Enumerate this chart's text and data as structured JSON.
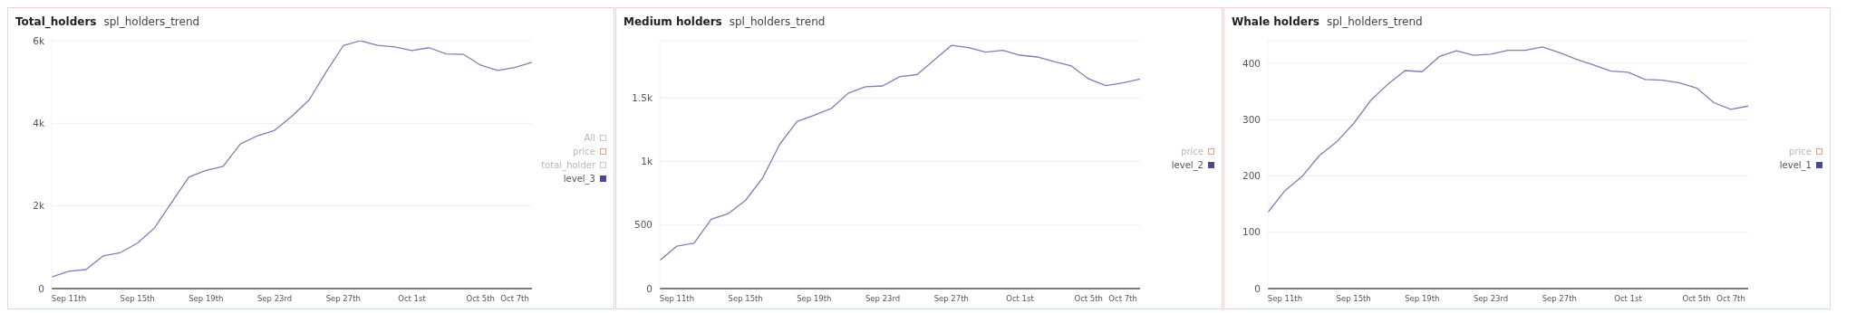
{
  "chart_data": [
    {
      "type": "line",
      "title": "Total_holders",
      "subtitle": "spl_holders_trend",
      "x": [
        "--09-10",
        "--09-11",
        "--09-12",
        "--09-13",
        "--09-14",
        "--09-15",
        "--09-16",
        "--09-17",
        "--09-18",
        "--09-19",
        "--09-20",
        "--09-21",
        "--09-22",
        "--09-23",
        "--09-24",
        "--09-25",
        "--09-26",
        "--09-27",
        "--09-28",
        "--09-29",
        "--09-30",
        "--10-01",
        "--10-02",
        "--10-03",
        "--10-04",
        "--10-05",
        "--10-06",
        "--10-07",
        "--10-08"
      ],
      "series": [
        {
          "name": "All",
          "color": "#c8c8c8",
          "values": [
            null,
            null,
            null,
            null,
            null,
            null,
            null,
            null,
            null,
            null,
            null,
            null,
            null,
            null,
            null,
            null,
            null,
            null,
            null,
            null,
            null,
            null,
            null,
            null,
            null,
            null,
            null,
            null,
            null
          ]
        },
        {
          "name": "price",
          "color": "#e8a08a",
          "values": [
            null,
            null,
            null,
            null,
            null,
            null,
            null,
            null,
            null,
            null,
            null,
            null,
            null,
            null,
            null,
            null,
            null,
            null,
            null,
            null,
            null,
            null,
            null,
            null,
            null,
            null,
            null,
            null,
            null
          ]
        },
        {
          "name": "total_holder",
          "color": "#c8c8c8",
          "values": [
            null,
            null,
            null,
            null,
            null,
            null,
            null,
            null,
            null,
            null,
            null,
            null,
            null,
            null,
            null,
            null,
            null,
            null,
            null,
            null,
            null,
            null,
            null,
            null,
            null,
            null,
            null,
            null,
            null
          ]
        },
        {
          "name": "level_3",
          "color": "#7f7fb8",
          "values": [
            280,
            420,
            460,
            790,
            870,
            1100,
            1470,
            2090,
            2700,
            2860,
            2960,
            3500,
            3700,
            3830,
            4170,
            4560,
            5240,
            5880,
            6000,
            5890,
            5850,
            5760,
            5830,
            5680,
            5670,
            5410,
            5280,
            5350,
            5480
          ]
        }
      ],
      "xlim": [
        "--09-10",
        "--10-08"
      ],
      "xticks": [
        {
          "value": "--09-11",
          "label": "Sep 11th"
        },
        {
          "value": "--09-15",
          "label": "Sep 15th"
        },
        {
          "value": "--09-19",
          "label": "Sep 19th"
        },
        {
          "value": "--09-23",
          "label": "Sep 23rd"
        },
        {
          "value": "--09-27",
          "label": "Sep 27th"
        },
        {
          "value": "--10-01",
          "label": "Oct 1st"
        },
        {
          "value": "--10-05",
          "label": "Oct 5th"
        },
        {
          "value": "--10-07",
          "label": "Oct 7th"
        }
      ],
      "ylim": [
        0,
        6000
      ],
      "yticks": [
        0,
        {
          "value": 2000,
          "label": "2k"
        },
        {
          "value": 4000,
          "label": "4k"
        },
        {
          "value": 6000,
          "label": "6k"
        }
      ],
      "grid": "y",
      "legend": "right",
      "marker": "none",
      "line_style": "solid"
    },
    {
      "type": "line",
      "title": "Medium holders",
      "subtitle": "spl_holders_trend",
      "x": [
        "--09-10",
        "--09-11",
        "--09-12",
        "--09-13",
        "--09-14",
        "--09-15",
        "--09-16",
        "--09-17",
        "--09-18",
        "--09-19",
        "--09-20",
        "--09-21",
        "--09-22",
        "--09-23",
        "--09-24",
        "--09-25",
        "--09-26",
        "--09-27",
        "--09-28",
        "--09-29",
        "--09-30",
        "--10-01",
        "--10-02",
        "--10-03",
        "--10-04",
        "--10-05",
        "--10-06",
        "--10-07",
        "--10-08"
      ],
      "series": [
        {
          "name": "price",
          "color": "#e8a08a",
          "values": [
            null,
            null,
            null,
            null,
            null,
            null,
            null,
            null,
            null,
            null,
            null,
            null,
            null,
            null,
            null,
            null,
            null,
            null,
            null,
            null,
            null,
            null,
            null,
            null,
            null,
            null,
            null,
            null,
            null
          ]
        },
        {
          "name": "level_2",
          "color": "#7f7fb8",
          "values": [
            221,
            334,
            357,
            546,
            590,
            694,
            871,
            1137,
            1314,
            1364,
            1417,
            1538,
            1588,
            1594,
            1668,
            1683,
            1798,
            1913,
            1895,
            1860,
            1875,
            1836,
            1822,
            1786,
            1751,
            1650,
            1597,
            1618,
            1648
          ]
        }
      ],
      "xlim": [
        "--09-10",
        "--10-08"
      ],
      "xticks": [
        {
          "value": "--09-11",
          "label": "Sep 11th"
        },
        {
          "value": "--09-15",
          "label": "Sep 15th"
        },
        {
          "value": "--09-19",
          "label": "Sep 19th"
        },
        {
          "value": "--09-23",
          "label": "Sep 23rd"
        },
        {
          "value": "--09-27",
          "label": "Sep 27th"
        },
        {
          "value": "--10-01",
          "label": "Oct 1st"
        },
        {
          "value": "--10-05",
          "label": "Oct 5th"
        },
        {
          "value": "--10-07",
          "label": "Oct 7th"
        }
      ],
      "ylim": [
        0,
        1950
      ],
      "yticks": [
        0,
        500,
        {
          "value": 1000,
          "label": "1k"
        },
        {
          "value": 1500,
          "label": "1.5k"
        }
      ],
      "grid": "y",
      "legend": "right",
      "marker": "none",
      "line_style": "solid"
    },
    {
      "type": "line",
      "title": "Whale holders",
      "subtitle": "spl_holders_trend",
      "x": [
        "--09-10",
        "--09-11",
        "--09-12",
        "--09-13",
        "--09-14",
        "--09-15",
        "--09-16",
        "--09-17",
        "--09-18",
        "--09-19",
        "--09-20",
        "--09-21",
        "--09-22",
        "--09-23",
        "--09-24",
        "--09-25",
        "--09-26",
        "--09-27",
        "--09-28",
        "--09-29",
        "--09-30",
        "--10-01",
        "--10-02",
        "--10-03",
        "--10-04",
        "--10-05",
        "--10-06",
        "--10-07",
        "--10-08"
      ],
      "series": [
        {
          "name": "price",
          "color": "#e8a08a",
          "values": [
            null,
            null,
            null,
            null,
            null,
            null,
            null,
            null,
            null,
            null,
            null,
            null,
            null,
            null,
            null,
            null,
            null,
            null,
            null,
            null,
            null,
            null,
            null,
            null,
            null,
            null,
            null,
            null,
            null
          ]
        },
        {
          "name": "level_1",
          "color": "#7f7fb8",
          "values": [
            135,
            174,
            199,
            236,
            260,
            293,
            334,
            363,
            387,
            385,
            412,
            422,
            414,
            416,
            423,
            423,
            429,
            419,
            407,
            397,
            386,
            384,
            371,
            370,
            365,
            356,
            330,
            318,
            324
          ]
        }
      ],
      "xlim": [
        "--09-10",
        "--10-08"
      ],
      "xticks": [
        {
          "value": "--09-11",
          "label": "Sep 11th"
        },
        {
          "value": "--09-15",
          "label": "Sep 15th"
        },
        {
          "value": "--09-19",
          "label": "Sep 19th"
        },
        {
          "value": "--09-23",
          "label": "Sep 23rd"
        },
        {
          "value": "--09-27",
          "label": "Sep 27th"
        },
        {
          "value": "--10-01",
          "label": "Oct 1st"
        },
        {
          "value": "--10-05",
          "label": "Oct 5th"
        },
        {
          "value": "--10-07",
          "label": "Oct 7th"
        }
      ],
      "ylim": [
        0,
        440
      ],
      "yticks": [
        0,
        100,
        200,
        300,
        400
      ],
      "grid": "y",
      "legend": "right",
      "marker": "none",
      "line_style": "solid"
    }
  ]
}
